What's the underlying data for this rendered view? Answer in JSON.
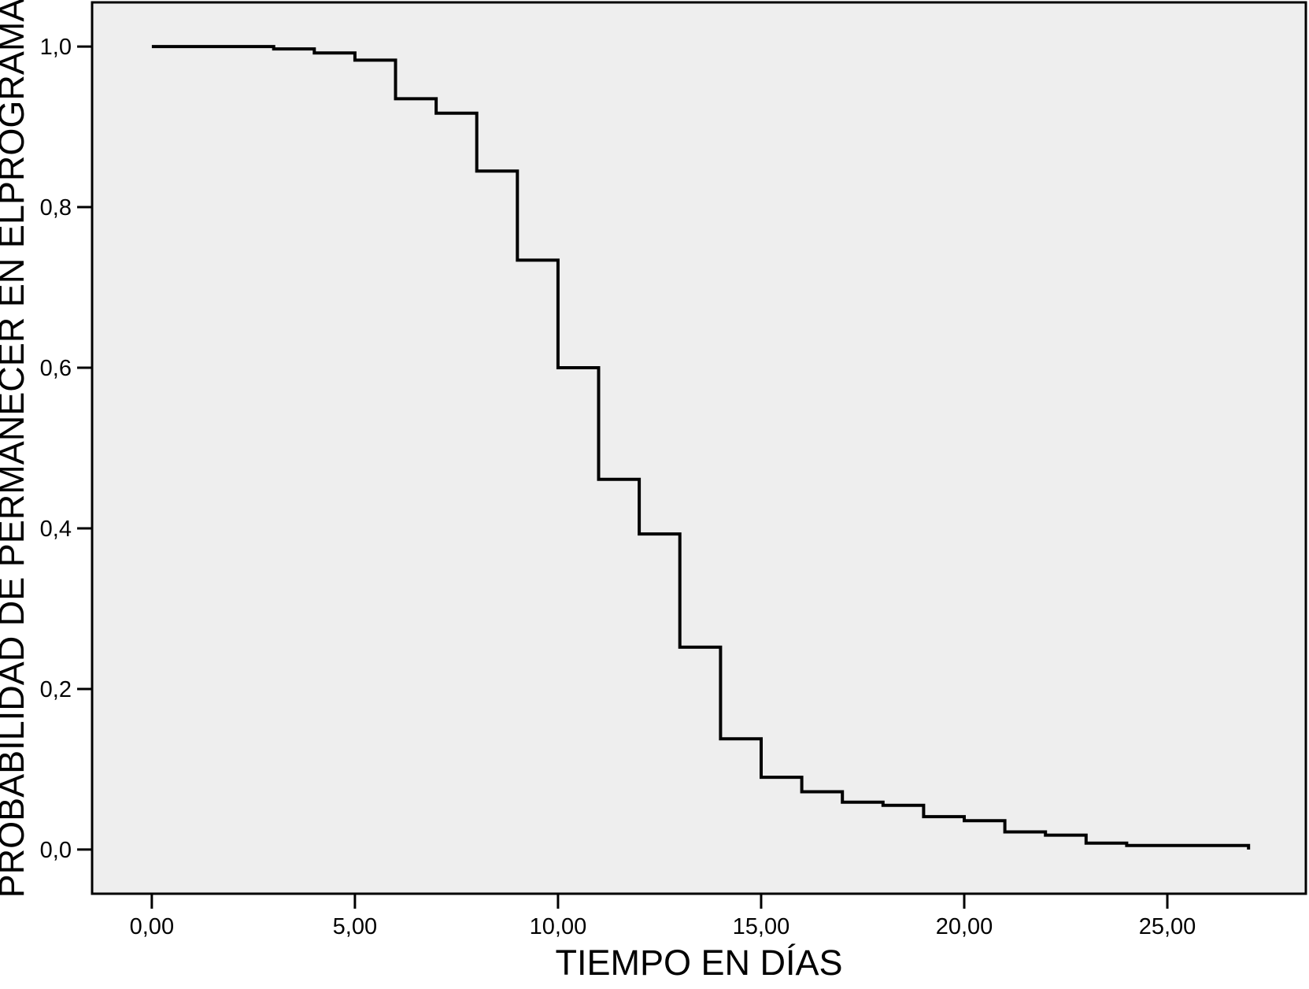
{
  "chart_data": {
    "type": "line",
    "subtype": "step-survival-kaplan-meier",
    "title": "",
    "xlabel": "TIEMPO EN DÍAS",
    "ylabel": "PROBABILIDAD DE PERMANECER EN ELPROGRAMA",
    "x_ticks": {
      "values": [
        0,
        5,
        10,
        15,
        20,
        25
      ],
      "labels": [
        "0,00",
        "5,00",
        "10,00",
        "15,00",
        "20,00",
        "25,00"
      ]
    },
    "y_ticks": {
      "values": [
        0.0,
        0.2,
        0.4,
        0.6,
        0.8,
        1.0
      ],
      "labels": [
        "0,0",
        "0,2",
        "0,4",
        "0,6",
        "0,8",
        "1,0"
      ]
    },
    "xlim": [
      -1.47,
      28.41
    ],
    "ylim": [
      -0.055,
      1.055
    ],
    "grid": false,
    "legend": "none",
    "line_color": "#000000",
    "plot_bg": "#eeeeee",
    "frame_color": "#000000",
    "series": [
      {
        "name": "probabilidad de permanecer en el programa",
        "points": [
          [
            0,
            1.0
          ],
          [
            3,
            0.997
          ],
          [
            4,
            0.992
          ],
          [
            5,
            0.983
          ],
          [
            6,
            0.935
          ],
          [
            7,
            0.917
          ],
          [
            8,
            0.845
          ],
          [
            9,
            0.734
          ],
          [
            10,
            0.6
          ],
          [
            11,
            0.461
          ],
          [
            12,
            0.393
          ],
          [
            13,
            0.252
          ],
          [
            14,
            0.138
          ],
          [
            15,
            0.09
          ],
          [
            16,
            0.072
          ],
          [
            17,
            0.059
          ],
          [
            18,
            0.055
          ],
          [
            19,
            0.041
          ],
          [
            20,
            0.036
          ],
          [
            21,
            0.022
          ],
          [
            22,
            0.018
          ],
          [
            23,
            0.008
          ],
          [
            24,
            0.005
          ],
          [
            27,
            0.0
          ]
        ]
      }
    ]
  }
}
